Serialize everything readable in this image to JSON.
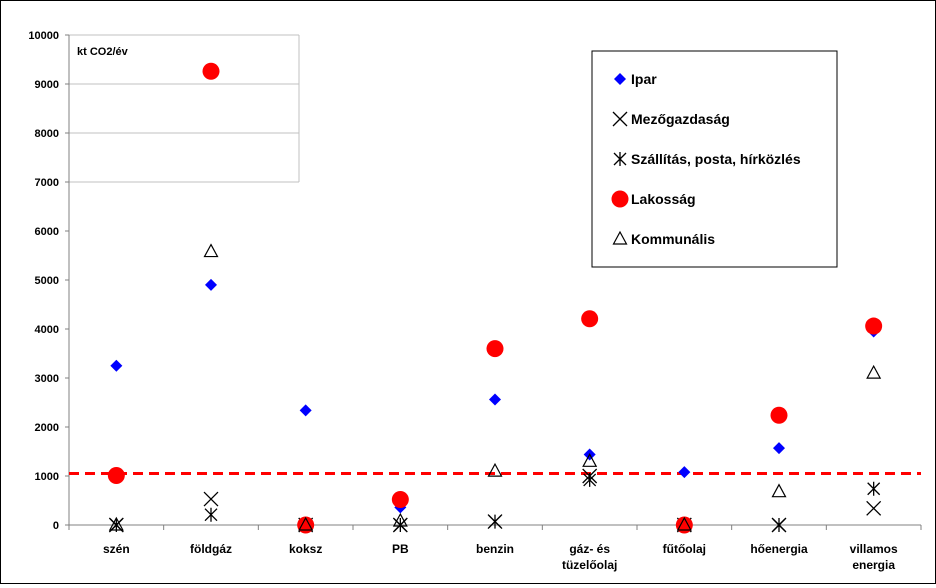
{
  "chart_data": {
    "type": "scatter",
    "unit_label": "kt CO2/év",
    "categories": [
      "szén",
      "földgáz",
      "koksz",
      "PB",
      "benzin",
      "gáz- és\ntüzelőolaj",
      "fűtőolaj",
      "hőenergia",
      "villamos\nenergia"
    ],
    "ylim": [
      0,
      10000
    ],
    "yticks": [
      0,
      1000,
      2000,
      3000,
      4000,
      5000,
      6000,
      7000,
      8000,
      9000,
      10000
    ],
    "reference_line": {
      "value": 1050,
      "color": "#ff0000",
      "style": "dashed"
    },
    "grid": "horizontal, upper region only",
    "legend_position": "top-right",
    "series": [
      {
        "name": "Ipar",
        "marker": "diamond",
        "color": "#0000ff",
        "values": [
          3250,
          4900,
          2340,
          360,
          2560,
          1440,
          1080,
          1570,
          3950
        ]
      },
      {
        "name": "Mezőgazdaság",
        "marker": "x",
        "color": "#000000",
        "values": [
          0,
          530,
          0,
          0,
          70,
          1000,
          0,
          0,
          340
        ]
      },
      {
        "name": "Szállítás, posta, hírközlés",
        "marker": "asterisk",
        "color": "#000000",
        "values": [
          0,
          210,
          0,
          0,
          70,
          920,
          0,
          0,
          740
        ]
      },
      {
        "name": "Lakosság",
        "marker": "circle",
        "color": "#ff0000",
        "values": [
          1010,
          9260,
          0,
          520,
          3600,
          4210,
          0,
          2240,
          4060
        ]
      },
      {
        "name": "Kommunális",
        "marker": "triangle",
        "color": "#000000",
        "values": [
          0,
          5580,
          0,
          80,
          1100,
          1300,
          0,
          680,
          3100
        ]
      }
    ]
  }
}
